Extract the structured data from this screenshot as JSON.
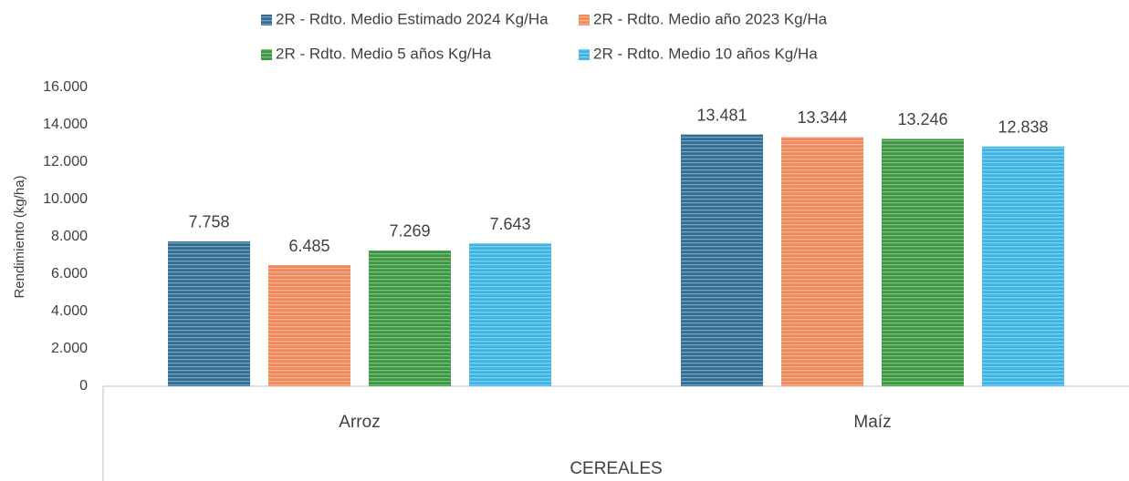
{
  "chart_data": {
    "type": "bar",
    "categories": [
      "Arroz",
      "Maíz"
    ],
    "x_label": "CEREALES",
    "y_label": "Rendimiento (kg/ha)",
    "series": [
      {
        "name": "2R - Rdto. Medio Estimado 2024 Kg/Ha",
        "color": "#2f6d94",
        "values": [
          7758,
          13481
        ],
        "value_labels": [
          "7.758",
          "13.481"
        ]
      },
      {
        "name": "2R - Rdto. Medio año 2023 Kg/Ha",
        "color": "#f0885a",
        "values": [
          6485,
          13344
        ],
        "value_labels": [
          "6.485",
          "13.344"
        ]
      },
      {
        "name": "2R - Rdto. Medio 5 años Kg/Ha",
        "color": "#3a963f",
        "values": [
          7269,
          13246
        ],
        "value_labels": [
          "7.269",
          "13.246"
        ]
      },
      {
        "name": "2R - Rdto. Medio 10 años Kg/Ha",
        "color": "#3db4e6",
        "values": [
          7643,
          12838
        ],
        "value_labels": [
          "7.643",
          "12.838"
        ]
      }
    ],
    "ylim": [
      0,
      16000
    ],
    "yticks": [
      0,
      {
        "value": 2000,
        "label": "2.000"
      },
      {
        "value": 4000,
        "label": "4.000"
      },
      {
        "value": 6000,
        "label": "6.000"
      },
      {
        "value": 8000,
        "label": "8.000"
      },
      {
        "value": 10000,
        "label": "10.000"
      },
      {
        "value": 12000,
        "label": "12.000"
      },
      {
        "value": 14000,
        "label": "14.000"
      },
      {
        "value": 16000,
        "label": "16.000"
      }
    ],
    "grid": false,
    "legend": "top"
  }
}
